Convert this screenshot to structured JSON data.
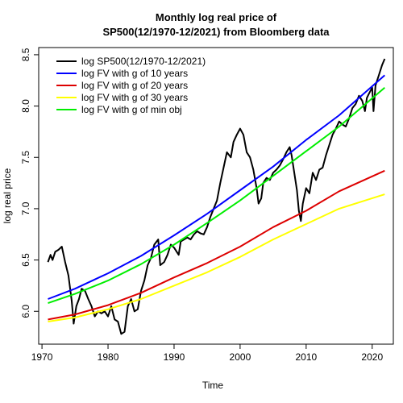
{
  "chart_data": {
    "type": "line",
    "title": "Monthly log real price of",
    "subtitle": "SP500(12/1970-12/2021) from Bloomberg data",
    "xlabel": "Time",
    "ylabel": "log real price",
    "xlim": [
      1969.5,
      2023.2
    ],
    "ylim": [
      5.68,
      8.57
    ],
    "xticks": [
      1970,
      1980,
      1990,
      2000,
      2010,
      2020
    ],
    "yticks": [
      6.0,
      6.5,
      7.0,
      7.5,
      8.0,
      8.5
    ],
    "xtick_labels": [
      "1970",
      "1980",
      "1990",
      "2000",
      "2010",
      "2020"
    ],
    "ytick_labels": [
      "6.0",
      "6.5",
      "7.0",
      "7.5",
      "8.0",
      "8.5"
    ],
    "grid": false,
    "legend_position": "top-left",
    "series": [
      {
        "name": "log SP500(12/1970-12/2021)",
        "color": "#000000",
        "x": [
          1970.9,
          1971.3,
          1971.6,
          1972.0,
          1972.5,
          1973.0,
          1973.5,
          1974.0,
          1974.5,
          1974.8,
          1975.2,
          1975.6,
          1976.0,
          1976.5,
          1977.0,
          1977.5,
          1978.0,
          1978.5,
          1979.0,
          1979.5,
          1980.0,
          1980.5,
          1981.0,
          1981.5,
          1982.0,
          1982.5,
          1983.0,
          1983.5,
          1984.0,
          1984.5,
          1985.0,
          1985.5,
          1986.0,
          1986.5,
          1987.0,
          1987.6,
          1987.9,
          1988.5,
          1989.0,
          1989.5,
          1990.0,
          1990.7,
          1991.0,
          1991.5,
          1992.0,
          1992.5,
          1993.0,
          1993.5,
          1994.0,
          1994.5,
          1995.0,
          1995.5,
          1996.0,
          1996.5,
          1997.0,
          1997.5,
          1998.0,
          1998.6,
          1999.0,
          1999.5,
          2000.0,
          2000.5,
          2001.0,
          2001.5,
          2002.0,
          2002.5,
          2002.8,
          2003.2,
          2003.5,
          2004.0,
          2004.5,
          2005.0,
          2005.5,
          2006.0,
          2006.5,
          2007.0,
          2007.5,
          2007.8,
          2008.2,
          2008.6,
          2008.9,
          2009.2,
          2009.5,
          2010.0,
          2010.5,
          2011.0,
          2011.5,
          2012.0,
          2012.5,
          2013.0,
          2013.5,
          2014.0,
          2014.5,
          2015.0,
          2015.5,
          2016.0,
          2016.5,
          2017.0,
          2017.5,
          2018.0,
          2018.5,
          2018.9,
          2019.2,
          2019.5,
          2020.0,
          2020.2,
          2020.5,
          2021.0,
          2021.5,
          2021.9
        ],
        "y": [
          6.48,
          6.55,
          6.5,
          6.58,
          6.6,
          6.63,
          6.48,
          6.35,
          6.1,
          5.88,
          6.05,
          6.12,
          6.22,
          6.2,
          6.12,
          6.05,
          5.95,
          6.0,
          5.98,
          6.0,
          5.95,
          6.05,
          5.92,
          5.9,
          5.78,
          5.8,
          6.05,
          6.12,
          6.0,
          6.02,
          6.2,
          6.3,
          6.45,
          6.52,
          6.65,
          6.7,
          6.45,
          6.48,
          6.55,
          6.65,
          6.62,
          6.55,
          6.68,
          6.7,
          6.72,
          6.7,
          6.75,
          6.78,
          6.76,
          6.75,
          6.82,
          6.92,
          7.0,
          7.08,
          7.25,
          7.4,
          7.55,
          7.5,
          7.65,
          7.72,
          7.78,
          7.72,
          7.55,
          7.5,
          7.38,
          7.2,
          7.05,
          7.1,
          7.25,
          7.3,
          7.28,
          7.35,
          7.38,
          7.42,
          7.48,
          7.55,
          7.6,
          7.52,
          7.35,
          7.18,
          6.98,
          6.88,
          7.05,
          7.2,
          7.15,
          7.35,
          7.28,
          7.38,
          7.4,
          7.52,
          7.62,
          7.72,
          7.78,
          7.85,
          7.82,
          7.8,
          7.88,
          7.98,
          8.02,
          8.1,
          8.05,
          7.95,
          8.08,
          8.12,
          8.18,
          7.95,
          8.2,
          8.3,
          8.4,
          8.46
        ]
      },
      {
        "name": "log FV with g of 10 years",
        "color": "#0000ff",
        "x": [
          1970.9,
          1975,
          1980,
          1985,
          1990,
          1995,
          2000,
          2005,
          2010,
          2015,
          2021.9
        ],
        "y": [
          6.12,
          6.22,
          6.37,
          6.54,
          6.74,
          6.95,
          7.18,
          7.41,
          7.67,
          7.91,
          8.3
        ]
      },
      {
        "name": "log FV with g of 20 years",
        "color": "#dd0000",
        "x": [
          1970.9,
          1975,
          1980,
          1985,
          1990,
          1995,
          2000,
          2005,
          2010,
          2015,
          2021.9
        ],
        "y": [
          5.92,
          5.97,
          6.06,
          6.18,
          6.33,
          6.47,
          6.63,
          6.82,
          6.98,
          7.17,
          7.37
        ]
      },
      {
        "name": "log FV with g of 30 years",
        "color": "#ffff00",
        "x": [
          1970.9,
          1975,
          1980,
          1985,
          1990,
          1995,
          2000,
          2005,
          2010,
          2015,
          2021.9
        ],
        "y": [
          5.9,
          5.94,
          6.02,
          6.12,
          6.25,
          6.38,
          6.53,
          6.7,
          6.85,
          7.0,
          7.14
        ]
      },
      {
        "name": "log FV with g of min obj",
        "color": "#00ee00",
        "x": [
          1970.9,
          1975,
          1980,
          1985,
          1990,
          1995,
          2000,
          2005,
          2010,
          2015,
          2021.9
        ],
        "y": [
          6.08,
          6.17,
          6.3,
          6.46,
          6.65,
          6.86,
          7.08,
          7.32,
          7.56,
          7.8,
          8.18
        ]
      }
    ]
  }
}
